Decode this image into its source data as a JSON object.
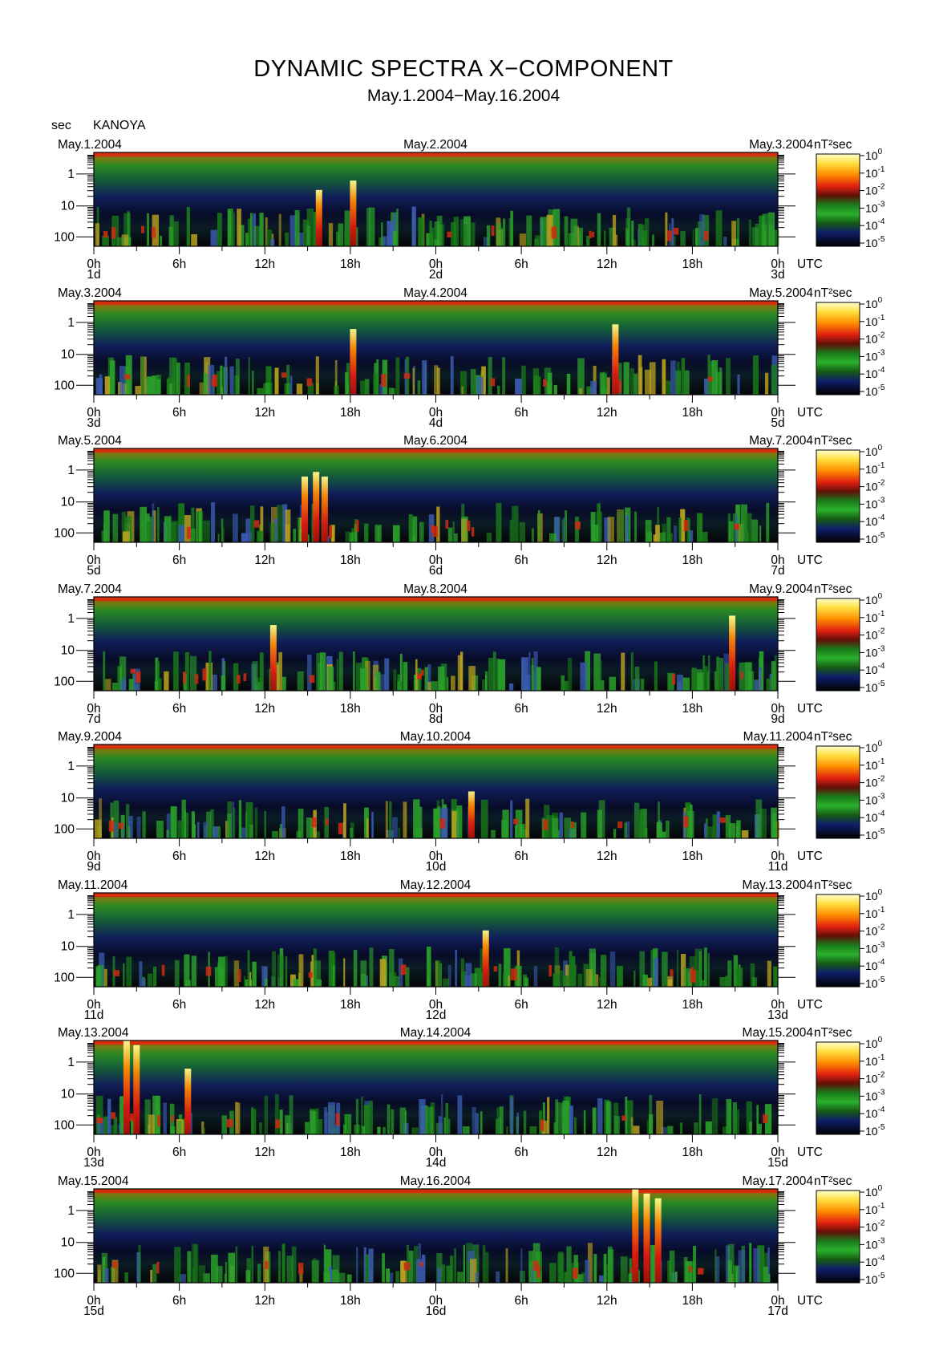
{
  "title": "DYNAMIC SPECTRA X−COMPONENT",
  "subtitle": "May.1.2004−May.16.2004",
  "y_unit_label": "sec",
  "station": "KANOYA",
  "x_unit": "UTC",
  "colorbar_unit": "nT²sec",
  "colors": {
    "background": "#000000",
    "low": "#101850",
    "mid_low": "#1a8a1a",
    "mid": "#2cb02c",
    "high": "#e02010",
    "max": "#ffff80"
  },
  "chart_data": {
    "type": "heatmap",
    "y_scale": "log",
    "y_ticks": [
      "1",
      "10",
      "100"
    ],
    "x_ticks": [
      "0h",
      "6h",
      "12h",
      "18h",
      "0h",
      "6h",
      "12h",
      "18h",
      "0h"
    ],
    "colorbar_ticks": [
      {
        "base": "10",
        "exp": "0"
      },
      {
        "base": "10",
        "exp": "-1"
      },
      {
        "base": "10",
        "exp": "-2"
      },
      {
        "base": "10",
        "exp": "-3"
      },
      {
        "base": "10",
        "exp": "-4"
      },
      {
        "base": "10",
        "exp": "-5"
      }
    ],
    "panels": [
      {
        "left_date": "May.1.2004",
        "mid_date": "May.2.2004",
        "right_date": "May.3.2004",
        "day_start": "1d",
        "day_mid": "2d",
        "day_end": "3d",
        "events": [
          {
            "hour": 15.8,
            "level": 0.6
          },
          {
            "hour": 18.2,
            "level": 0.7
          }
        ]
      },
      {
        "left_date": "May.3.2004",
        "mid_date": "May.4.2004",
        "right_date": "May.5.2004",
        "day_start": "3d",
        "day_mid": "4d",
        "day_end": "5d",
        "events": [
          {
            "hour": 18.2,
            "level": 0.7
          },
          {
            "hour": 36.6,
            "level": 0.75
          }
        ]
      },
      {
        "left_date": "May.5.2004",
        "mid_date": "May.6.2004",
        "right_date": "May.7.2004",
        "day_start": "5d",
        "day_mid": "6d",
        "day_end": "7d",
        "events": [
          {
            "hour": 14.8,
            "level": 0.7
          },
          {
            "hour": 15.6,
            "level": 0.75
          },
          {
            "hour": 16.2,
            "level": 0.7
          }
        ]
      },
      {
        "left_date": "May.7.2004",
        "mid_date": "May.8.2004",
        "right_date": "May.9.2004",
        "day_start": "7d",
        "day_mid": "8d",
        "day_end": "9d",
        "events": [
          {
            "hour": 12.6,
            "level": 0.7
          },
          {
            "hour": 44.8,
            "level": 0.8
          }
        ]
      },
      {
        "left_date": "May.9.2004",
        "mid_date": "May.10.2004",
        "right_date": "May.11.2004",
        "day_start": "9d",
        "day_mid": "10d",
        "day_end": "11d",
        "events": [
          {
            "hour": 26.5,
            "level": 0.5
          }
        ]
      },
      {
        "left_date": "May.11.2004",
        "mid_date": "May.12.2004",
        "right_date": "May.13.2004",
        "day_start": "11d",
        "day_mid": "12d",
        "day_end": "13d",
        "events": [
          {
            "hour": 27.5,
            "level": 0.6
          }
        ]
      },
      {
        "left_date": "May.13.2004",
        "mid_date": "May.14.2004",
        "right_date": "May.15.2004",
        "day_start": "13d",
        "day_mid": "14d",
        "day_end": "15d",
        "events": [
          {
            "hour": 2.3,
            "level": 1.0
          },
          {
            "hour": 3.0,
            "level": 0.95
          },
          {
            "hour": 6.6,
            "level": 0.7
          }
        ]
      },
      {
        "left_date": "May.15.2004",
        "mid_date": "May.16.2004",
        "right_date": "May.17.2004",
        "day_start": "15d",
        "day_mid": "16d",
        "day_end": "17d",
        "events": [
          {
            "hour": 38.0,
            "level": 1.0
          },
          {
            "hour": 38.8,
            "level": 0.95
          },
          {
            "hour": 39.6,
            "level": 0.9
          }
        ]
      }
    ]
  }
}
